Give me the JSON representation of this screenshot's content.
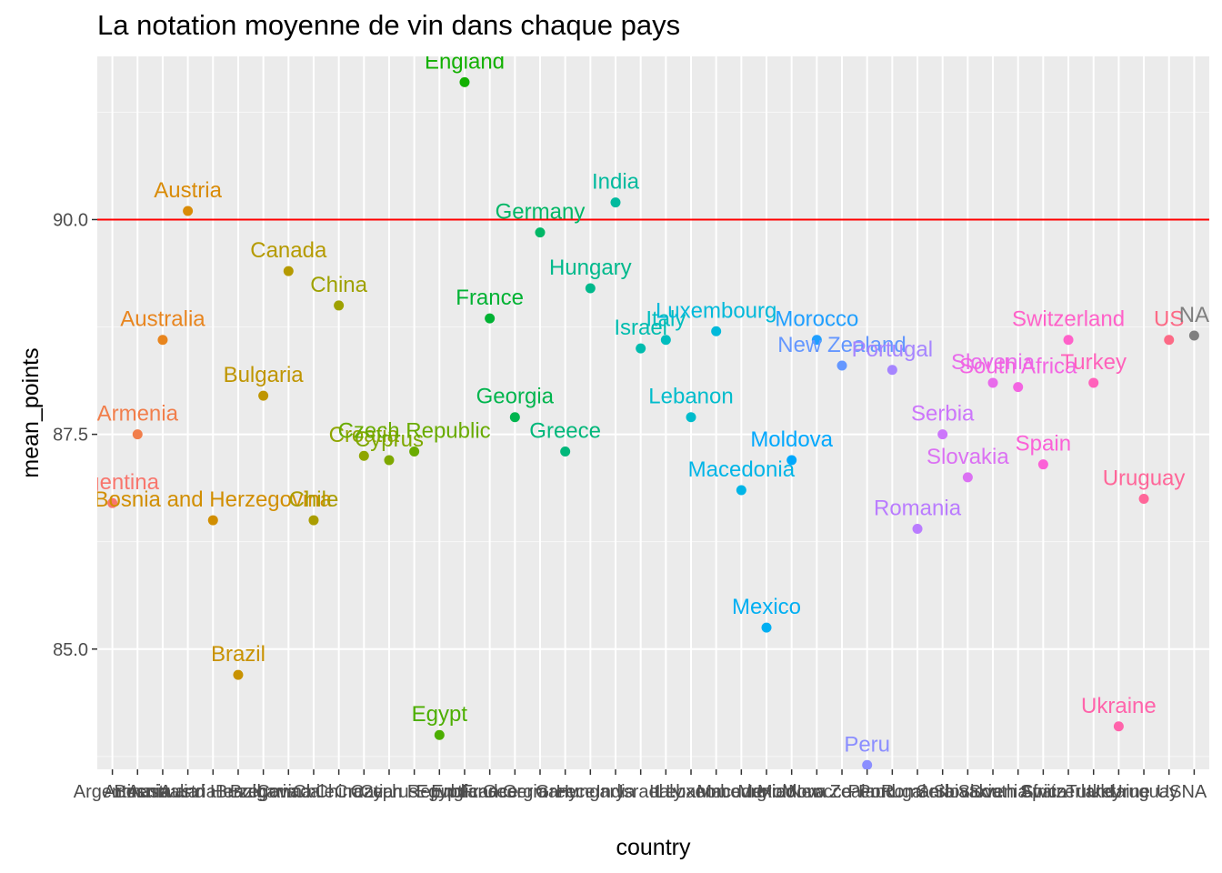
{
  "chart_data": {
    "type": "scatter",
    "title": "La notation moyenne de vin dans chaque pays",
    "xlabel": "country",
    "ylabel": "mean_points",
    "yticks": [
      "85.0",
      "87.5",
      "90.0"
    ],
    "ylim": [
      83.6,
      91.9
    ],
    "grid": true,
    "legend": "none",
    "reference_line": {
      "y": 90.0,
      "color": "#FF0000"
    },
    "points": [
      {
        "country": "Argentina",
        "label": "Argentina",
        "mean_points": 86.7,
        "color": "#F8766D"
      },
      {
        "country": "Armenia",
        "label": "Armenia",
        "mean_points": 87.5,
        "color": "#F17E4B"
      },
      {
        "country": "Australia",
        "label": "Australia",
        "mean_points": 88.6,
        "color": "#E8851E"
      },
      {
        "country": "Austria",
        "label": "Austria",
        "mean_points": 90.1,
        "color": "#D98B07"
      },
      {
        "country": "Bosnia and Herzegovina",
        "label": "Bosnia and Herzegovina",
        "mean_points": 86.5,
        "color": "#D18E00"
      },
      {
        "country": "Brazil",
        "label": "Brazil",
        "mean_points": 84.7,
        "color": "#C89200"
      },
      {
        "country": "Bulgaria",
        "label": "Bulgaria",
        "mean_points": 87.95,
        "color": "#BF9500"
      },
      {
        "country": "Canada",
        "label": "Canada",
        "mean_points": 89.4,
        "color": "#B59A00"
      },
      {
        "country": "Chile",
        "label": "Chile",
        "mean_points": 86.5,
        "color": "#AA9D00"
      },
      {
        "country": "China",
        "label": "China",
        "mean_points": 89.0,
        "color": "#9EA100"
      },
      {
        "country": "Croatia",
        "label": "Croatia",
        "mean_points": 87.25,
        "color": "#8FA500"
      },
      {
        "country": "Cyprus",
        "label": "Cyprus",
        "mean_points": 87.2,
        "color": "#7EA800"
      },
      {
        "country": "Czech Republic",
        "label": "Czech Republic",
        "mean_points": 87.3,
        "color": "#69AB00"
      },
      {
        "country": "Egypt",
        "label": "Egypt",
        "mean_points": 84.0,
        "color": "#4CAE00"
      },
      {
        "country": "England",
        "label": "England",
        "mean_points": 91.6,
        "color": "#12B000"
      },
      {
        "country": "France",
        "label": "France",
        "mean_points": 88.85,
        "color": "#00B233"
      },
      {
        "country": "Georgia",
        "label": "Georgia",
        "mean_points": 87.7,
        "color": "#00B54E"
      },
      {
        "country": "Germany",
        "label": "Germany",
        "mean_points": 89.85,
        "color": "#00B766"
      },
      {
        "country": "Greece",
        "label": "Greece",
        "mean_points": 87.3,
        "color": "#00B77A"
      },
      {
        "country": "Hungary",
        "label": "Hungary",
        "mean_points": 89.2,
        "color": "#00B98C"
      },
      {
        "country": "India",
        "label": "India",
        "mean_points": 90.2,
        "color": "#00BA9E"
      },
      {
        "country": "Israel",
        "label": "Israel",
        "mean_points": 88.5,
        "color": "#00BCAE"
      },
      {
        "country": "Italy",
        "label": "Italy",
        "mean_points": 88.6,
        "color": "#00BDBE"
      },
      {
        "country": "Lebanon",
        "label": "Lebanon",
        "mean_points": 87.7,
        "color": "#00BCCC"
      },
      {
        "country": "Luxembourg",
        "label": "Luxembourg",
        "mean_points": 88.7,
        "color": "#00B9DA"
      },
      {
        "country": "Macedonia",
        "label": "Macedonia",
        "mean_points": 86.85,
        "color": "#00B5E7"
      },
      {
        "country": "Mexico",
        "label": "Mexico",
        "mean_points": 85.25,
        "color": "#00AFF2"
      },
      {
        "country": "Moldova",
        "label": "Moldova",
        "mean_points": 87.2,
        "color": "#00A8FD"
      },
      {
        "country": "Morocco",
        "label": "Morocco",
        "mean_points": 88.6,
        "color": "#1F9FFF"
      },
      {
        "country": "New Zealand",
        "label": "New Zealand",
        "mean_points": 88.3,
        "color": "#6497FF"
      },
      {
        "country": "Peru",
        "label": "Peru",
        "mean_points": 83.65,
        "color": "#8B8EFF"
      },
      {
        "country": "Portugal",
        "label": "Portugal",
        "mean_points": 88.25,
        "color": "#A685FF"
      },
      {
        "country": "Romania",
        "label": "Romania",
        "mean_points": 86.4,
        "color": "#BA7CFF"
      },
      {
        "country": "Serbia",
        "label": "Serbia",
        "mean_points": 87.5,
        "color": "#CC76FB"
      },
      {
        "country": "Slovakia",
        "label": "Slovakia",
        "mean_points": 87.0,
        "color": "#DB71F3"
      },
      {
        "country": "Slovenia",
        "label": "Slovenia",
        "mean_points": 88.1,
        "color": "#E86BEB"
      },
      {
        "country": "South Africa",
        "label": "South Africa",
        "mean_points": 88.05,
        "color": "#F365E2"
      },
      {
        "country": "Spain",
        "label": "Spain",
        "mean_points": 87.15,
        "color": "#FB61D7"
      },
      {
        "country": "Switzerland",
        "label": "Switzerland",
        "mean_points": 88.6,
        "color": "#FF61C9"
      },
      {
        "country": "Turkey",
        "label": "Turkey",
        "mean_points": 88.1,
        "color": "#FF62BB"
      },
      {
        "country": "Ukraine",
        "label": "Ukraine",
        "mean_points": 84.1,
        "color": "#FF64AB"
      },
      {
        "country": "Uruguay",
        "label": "Uruguay",
        "mean_points": 86.75,
        "color": "#FF6699"
      },
      {
        "country": "US",
        "label": "US",
        "mean_points": 88.6,
        "color": "#FC6A86"
      },
      {
        "country": "NA",
        "label": "NA",
        "mean_points": 88.65,
        "color": "#7F7F7F"
      }
    ]
  }
}
